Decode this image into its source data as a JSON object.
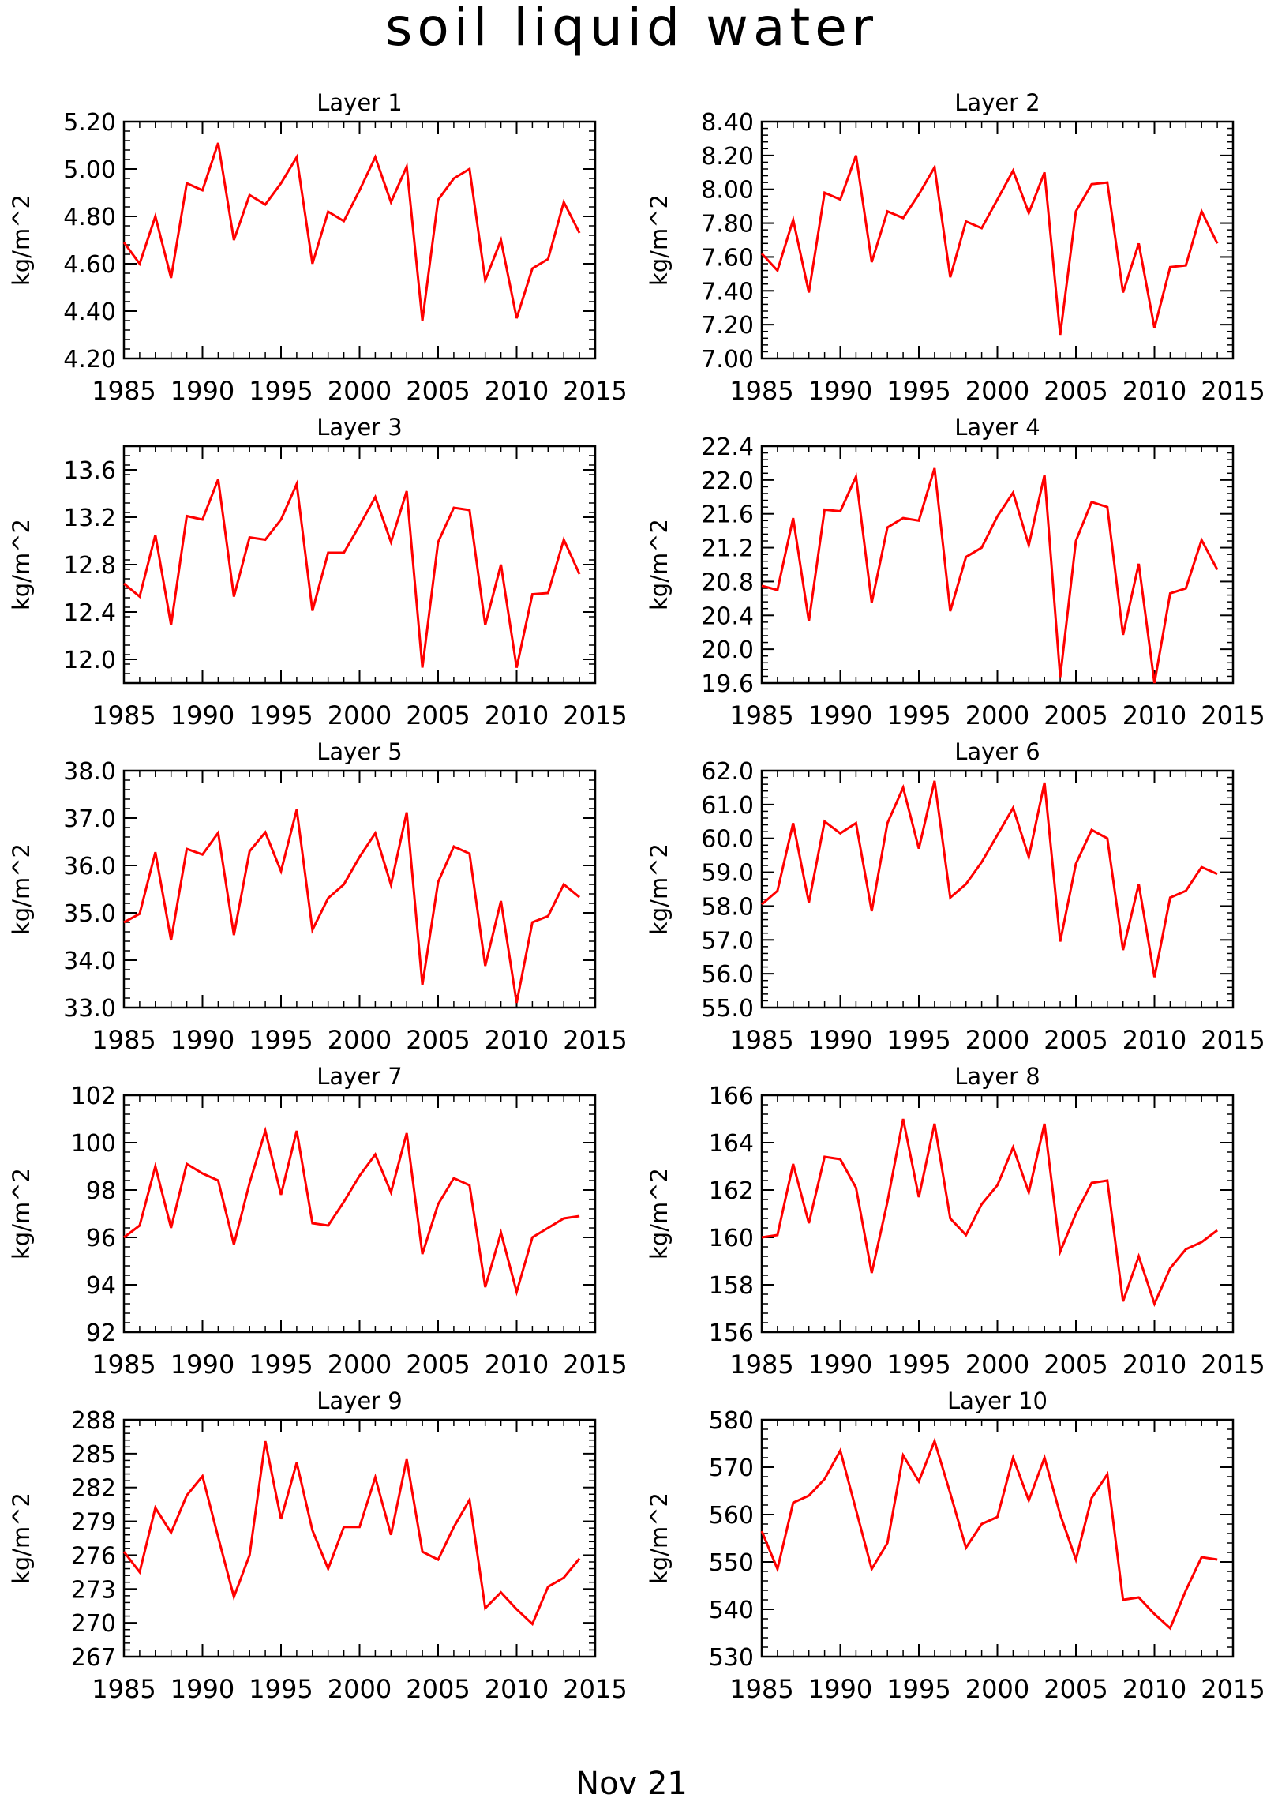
{
  "figure": {
    "title": "soil liquid water",
    "bottom_note": "Nov 21"
  },
  "colors": {
    "line": "#ff0000",
    "axis": "#000000",
    "background": "#ffffff"
  },
  "chart_data": [
    {
      "type": "line",
      "title": "Layer 1",
      "ylabel": "kg/m^2",
      "xlim": [
        1985,
        2015
      ],
      "ylim": [
        4.2,
        5.2
      ],
      "yticks": [
        "4.20",
        "4.40",
        "4.60",
        "4.80",
        "5.00",
        "5.20"
      ],
      "xticks": [
        "1985",
        "1990",
        "1995",
        "2000",
        "2005",
        "2010",
        "2015"
      ],
      "x": [
        1985,
        1986,
        1987,
        1988,
        1989,
        1990,
        1991,
        1992,
        1993,
        1994,
        1995,
        1996,
        1997,
        1998,
        1999,
        2000,
        2001,
        2002,
        2003,
        2004,
        2005,
        2006,
        2007,
        2008,
        2009,
        2010,
        2011,
        2012,
        2013,
        2014
      ],
      "values": [
        4.69,
        4.6,
        4.8,
        4.54,
        4.94,
        4.91,
        5.11,
        4.7,
        4.89,
        4.85,
        4.94,
        5.05,
        4.6,
        4.82,
        4.78,
        4.91,
        5.05,
        4.86,
        5.01,
        4.36,
        4.87,
        4.96,
        5.0,
        4.53,
        4.7,
        4.37,
        4.58,
        4.62,
        4.86,
        4.73
      ]
    },
    {
      "type": "line",
      "title": "Layer 2",
      "ylabel": "kg/m^2",
      "xlim": [
        1985,
        2015
      ],
      "ylim": [
        7.0,
        8.4
      ],
      "yticks": [
        "7.00",
        "7.20",
        "7.40",
        "7.60",
        "7.80",
        "8.00",
        "8.20",
        "8.40"
      ],
      "xticks": [
        "1985",
        "1990",
        "1995",
        "2000",
        "2005",
        "2010",
        "2015"
      ],
      "x": [
        1985,
        1986,
        1987,
        1988,
        1989,
        1990,
        1991,
        1992,
        1993,
        1994,
        1995,
        1996,
        1997,
        1998,
        1999,
        2000,
        2001,
        2002,
        2003,
        2004,
        2005,
        2006,
        2007,
        2008,
        2009,
        2010,
        2011,
        2012,
        2013,
        2014
      ],
      "values": [
        7.62,
        7.52,
        7.82,
        7.39,
        7.98,
        7.94,
        8.2,
        7.57,
        7.87,
        7.83,
        7.97,
        8.13,
        7.48,
        7.81,
        7.77,
        7.94,
        8.11,
        7.86,
        8.1,
        7.14,
        7.87,
        8.03,
        8.04,
        7.39,
        7.68,
        7.18,
        7.54,
        7.55,
        7.87,
        7.68
      ]
    },
    {
      "type": "line",
      "title": "Layer 3",
      "ylabel": "kg/m^2",
      "xlim": [
        1985,
        2015
      ],
      "ylim": [
        11.8,
        13.8
      ],
      "yticks": [
        "12.0",
        "12.4",
        "12.8",
        "13.2",
        "13.6"
      ],
      "xticks": [
        "1985",
        "1990",
        "1995",
        "2000",
        "2005",
        "2010",
        "2015"
      ],
      "x": [
        1985,
        1986,
        1987,
        1988,
        1989,
        1990,
        1991,
        1992,
        1993,
        1994,
        1995,
        1996,
        1997,
        1998,
        1999,
        2000,
        2001,
        2002,
        2003,
        2004,
        2005,
        2006,
        2007,
        2008,
        2009,
        2010,
        2011,
        2012,
        2013,
        2014
      ],
      "values": [
        12.64,
        12.53,
        13.05,
        12.29,
        13.21,
        13.18,
        13.52,
        12.53,
        13.03,
        13.01,
        13.18,
        13.48,
        12.41,
        12.9,
        12.9,
        13.13,
        13.37,
        12.99,
        13.42,
        11.93,
        12.99,
        13.28,
        13.26,
        12.29,
        12.8,
        11.93,
        12.55,
        12.56,
        13.01,
        12.72
      ]
    },
    {
      "type": "line",
      "title": "Layer 4",
      "ylabel": "kg/m^2",
      "xlim": [
        1985,
        2015
      ],
      "ylim": [
        19.6,
        22.4
      ],
      "yticks": [
        "19.6",
        "20.0",
        "20.4",
        "20.8",
        "21.2",
        "21.6",
        "22.0",
        "22.4"
      ],
      "xticks": [
        "1985",
        "1990",
        "1995",
        "2000",
        "2005",
        "2010",
        "2015"
      ],
      "x": [
        1985,
        1986,
        1987,
        1988,
        1989,
        1990,
        1991,
        1992,
        1993,
        1994,
        1995,
        1996,
        1997,
        1998,
        1999,
        2000,
        2001,
        2002,
        2003,
        2004,
        2005,
        2006,
        2007,
        2008,
        2009,
        2010,
        2011,
        2012,
        2013,
        2014
      ],
      "values": [
        20.75,
        20.7,
        21.55,
        20.33,
        21.65,
        21.63,
        22.04,
        20.55,
        21.44,
        21.55,
        21.52,
        22.14,
        20.45,
        21.09,
        21.2,
        21.57,
        21.85,
        21.23,
        22.06,
        19.67,
        21.28,
        21.74,
        21.68,
        20.17,
        21.01,
        19.6,
        20.66,
        20.72,
        21.29,
        20.94
      ]
    },
    {
      "type": "line",
      "title": "Layer 5",
      "ylabel": "kg/m^2",
      "xlim": [
        1985,
        2015
      ],
      "ylim": [
        33.0,
        38.0
      ],
      "yticks": [
        "33.0",
        "34.0",
        "35.0",
        "36.0",
        "37.0",
        "38.0"
      ],
      "xticks": [
        "1985",
        "1990",
        "1995",
        "2000",
        "2005",
        "2010",
        "2015"
      ],
      "x": [
        1985,
        1986,
        1987,
        1988,
        1989,
        1990,
        1991,
        1992,
        1993,
        1994,
        1995,
        1996,
        1997,
        1998,
        1999,
        2000,
        2001,
        2002,
        2003,
        2004,
        2005,
        2006,
        2007,
        2008,
        2009,
        2010,
        2011,
        2012,
        2013,
        2014
      ],
      "values": [
        34.8,
        34.98,
        36.28,
        34.42,
        36.35,
        36.23,
        36.69,
        34.53,
        36.3,
        36.7,
        35.88,
        37.18,
        34.64,
        35.31,
        35.6,
        36.18,
        36.68,
        35.59,
        37.12,
        33.48,
        35.65,
        36.4,
        36.25,
        33.88,
        35.25,
        33.1,
        34.8,
        34.93,
        35.6,
        35.33
      ]
    },
    {
      "type": "line",
      "title": "Layer 6",
      "ylabel": "kg/m^2",
      "xlim": [
        1985,
        2015
      ],
      "ylim": [
        55.0,
        62.0
      ],
      "yticks": [
        "55.0",
        "56.0",
        "57.0",
        "58.0",
        "59.0",
        "60.0",
        "61.0",
        "62.0"
      ],
      "xticks": [
        "1985",
        "1990",
        "1995",
        "2000",
        "2005",
        "2010",
        "2015"
      ],
      "x": [
        1985,
        1986,
        1987,
        1988,
        1989,
        1990,
        1991,
        1992,
        1993,
        1994,
        1995,
        1996,
        1997,
        1998,
        1999,
        2000,
        2001,
        2002,
        2003,
        2004,
        2005,
        2006,
        2007,
        2008,
        2009,
        2010,
        2011,
        2012,
        2013,
        2014
      ],
      "values": [
        58.05,
        58.45,
        60.45,
        58.1,
        60.5,
        60.15,
        60.45,
        57.85,
        60.45,
        61.5,
        59.7,
        61.7,
        58.25,
        58.65,
        59.3,
        60.1,
        60.9,
        59.45,
        61.65,
        56.95,
        59.25,
        60.25,
        60.0,
        56.7,
        58.65,
        55.9,
        58.25,
        58.45,
        59.15,
        58.95
      ]
    },
    {
      "type": "line",
      "title": "Layer 7",
      "ylabel": "kg/m^2",
      "xlim": [
        1985,
        2015
      ],
      "ylim": [
        92,
        102
      ],
      "yticks": [
        "92",
        "94",
        "96",
        "98",
        "100",
        "102"
      ],
      "xticks": [
        "1985",
        "1990",
        "1995",
        "2000",
        "2005",
        "2010",
        "2015"
      ],
      "x": [
        1985,
        1986,
        1987,
        1988,
        1989,
        1990,
        1991,
        1992,
        1993,
        1994,
        1995,
        1996,
        1997,
        1998,
        1999,
        2000,
        2001,
        2002,
        2003,
        2004,
        2005,
        2006,
        2007,
        2008,
        2009,
        2010,
        2011,
        2012,
        2013,
        2014
      ],
      "values": [
        96.0,
        96.5,
        99.0,
        96.4,
        99.1,
        98.7,
        98.4,
        95.7,
        98.3,
        100.5,
        97.8,
        100.5,
        96.6,
        96.5,
        97.5,
        98.6,
        99.5,
        97.9,
        100.4,
        95.3,
        97.4,
        98.5,
        98.2,
        93.9,
        96.2,
        93.7,
        96.0,
        96.4,
        96.8,
        96.9
      ]
    },
    {
      "type": "line",
      "title": "Layer 8",
      "ylabel": "kg/m^2",
      "xlim": [
        1985,
        2015
      ],
      "ylim": [
        156,
        166
      ],
      "yticks": [
        "156",
        "158",
        "160",
        "162",
        "164",
        "166"
      ],
      "xticks": [
        "1985",
        "1990",
        "1995",
        "2000",
        "2005",
        "2010",
        "2015"
      ],
      "x": [
        1985,
        1986,
        1987,
        1988,
        1989,
        1990,
        1991,
        1992,
        1993,
        1994,
        1995,
        1996,
        1997,
        1998,
        1999,
        2000,
        2001,
        2002,
        2003,
        2004,
        2005,
        2006,
        2007,
        2008,
        2009,
        2010,
        2011,
        2012,
        2013,
        2014
      ],
      "values": [
        160.0,
        160.1,
        163.1,
        160.6,
        163.4,
        163.3,
        162.1,
        158.5,
        161.5,
        165.0,
        161.7,
        164.8,
        160.8,
        160.1,
        161.4,
        162.2,
        163.8,
        161.9,
        164.8,
        159.4,
        161.0,
        162.3,
        162.4,
        157.3,
        159.2,
        157.2,
        158.7,
        159.5,
        159.8,
        160.3
      ]
    },
    {
      "type": "line",
      "title": "Layer 9",
      "ylabel": "kg/m^2",
      "xlim": [
        1985,
        2015
      ],
      "ylim": [
        267,
        288
      ],
      "yticks": [
        "267",
        "270",
        "273",
        "276",
        "279",
        "282",
        "285",
        "288"
      ],
      "xticks": [
        "1985",
        "1990",
        "1995",
        "2000",
        "2005",
        "2010",
        "2015"
      ],
      "x": [
        1985,
        1986,
        1987,
        1988,
        1989,
        1990,
        1991,
        1992,
        1993,
        1994,
        1995,
        1996,
        1997,
        1998,
        1999,
        2000,
        2001,
        2002,
        2003,
        2004,
        2005,
        2006,
        2007,
        2008,
        2009,
        2010,
        2011,
        2012,
        2013,
        2014
      ],
      "values": [
        276.3,
        274.5,
        280.2,
        278.0,
        281.3,
        283.0,
        277.6,
        272.3,
        276.0,
        286.1,
        279.2,
        284.2,
        278.2,
        274.8,
        278.5,
        278.5,
        282.9,
        277.8,
        284.5,
        276.3,
        275.6,
        278.5,
        280.9,
        271.3,
        272.7,
        271.2,
        269.9,
        273.2,
        274.0,
        275.7
      ]
    },
    {
      "type": "line",
      "title": "Layer 10",
      "ylabel": "kg/m^2",
      "xlim": [
        1985,
        2015
      ],
      "ylim": [
        530,
        580
      ],
      "yticks": [
        "530",
        "540",
        "550",
        "560",
        "570",
        "580"
      ],
      "xticks": [
        "1985",
        "1990",
        "1995",
        "2000",
        "2005",
        "2010",
        "2015"
      ],
      "x": [
        1985,
        1986,
        1987,
        1988,
        1989,
        1990,
        1991,
        1992,
        1993,
        1994,
        1995,
        1996,
        1997,
        1998,
        1999,
        2000,
        2001,
        2002,
        2003,
        2004,
        2005,
        2006,
        2007,
        2008,
        2009,
        2010,
        2011,
        2012,
        2013,
        2014
      ],
      "values": [
        556.5,
        548.5,
        562.5,
        564.0,
        567.5,
        573.5,
        561.0,
        548.5,
        554.0,
        572.5,
        567.0,
        575.5,
        564.5,
        553.0,
        558.0,
        559.5,
        572.0,
        563.0,
        572.0,
        560.0,
        550.5,
        563.5,
        568.5,
        542.0,
        542.5,
        539.0,
        536.0,
        544.0,
        551.0,
        550.5
      ]
    }
  ]
}
